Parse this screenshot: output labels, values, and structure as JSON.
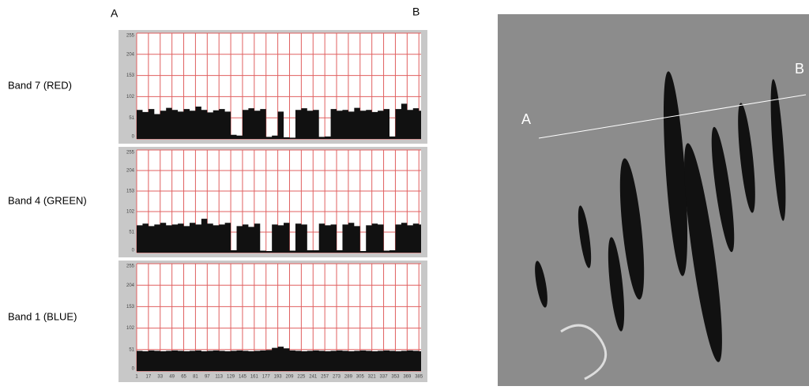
{
  "chart_data": [
    {
      "type": "area",
      "title": "Band 7 (RED)",
      "color": "#111111",
      "grid": true,
      "grid_color": "#e06060",
      "xlim": [
        1,
        388
      ],
      "ylim": [
        0,
        255
      ],
      "xticks": [
        1,
        17,
        33,
        49,
        65,
        81,
        97,
        113,
        129,
        145,
        161,
        177,
        193,
        209,
        225,
        241,
        257,
        273,
        289,
        305,
        321,
        337,
        353,
        369,
        385
      ],
      "yticks": [
        0,
        51,
        102,
        153,
        204,
        255
      ],
      "x": [
        1,
        9,
        17,
        25,
        33,
        41,
        49,
        57,
        65,
        73,
        81,
        89,
        97,
        105,
        113,
        121,
        129,
        137,
        145,
        153,
        161,
        169,
        177,
        185,
        193,
        201,
        209,
        217,
        225,
        233,
        241,
        249,
        257,
        265,
        273,
        281,
        289,
        297,
        305,
        313,
        321,
        329,
        337,
        345,
        353,
        361,
        369,
        377,
        385
      ],
      "values": [
        70,
        65,
        72,
        60,
        68,
        75,
        70,
        66,
        72,
        68,
        78,
        70,
        64,
        69,
        72,
        66,
        10,
        8,
        70,
        74,
        68,
        72,
        5,
        8,
        66,
        4,
        3,
        70,
        74,
        68,
        70,
        5,
        6,
        72,
        68,
        70,
        66,
        75,
        68,
        70,
        65,
        68,
        72,
        6,
        72,
        85,
        70,
        74,
        68
      ]
    },
    {
      "type": "area",
      "title": "Band 4 (GREEN)",
      "color": "#111111",
      "grid": true,
      "grid_color": "#e06060",
      "xlim": [
        1,
        388
      ],
      "ylim": [
        0,
        255
      ],
      "xticks": [
        1,
        17,
        33,
        49,
        65,
        81,
        97,
        113,
        129,
        145,
        161,
        177,
        193,
        209,
        225,
        241,
        257,
        273,
        289,
        305,
        321,
        337,
        353,
        369,
        385
      ],
      "yticks": [
        0,
        51,
        102,
        153,
        204,
        255
      ],
      "x": [
        1,
        9,
        17,
        25,
        33,
        41,
        49,
        57,
        65,
        73,
        81,
        89,
        97,
        105,
        113,
        121,
        129,
        137,
        145,
        153,
        161,
        169,
        177,
        185,
        193,
        201,
        209,
        217,
        225,
        233,
        241,
        249,
        257,
        265,
        273,
        281,
        289,
        297,
        305,
        313,
        321,
        329,
        337,
        345,
        353,
        361,
        369,
        377,
        385
      ],
      "values": [
        68,
        72,
        66,
        70,
        74,
        68,
        70,
        72,
        66,
        74,
        70,
        84,
        72,
        68,
        70,
        74,
        6,
        66,
        70,
        64,
        72,
        5,
        4,
        70,
        68,
        74,
        5,
        72,
        70,
        6,
        6,
        72,
        68,
        70,
        6,
        70,
        74,
        66,
        4,
        68,
        72,
        70,
        5,
        6,
        70,
        74,
        68,
        72,
        70
      ]
    },
    {
      "type": "area",
      "title": "Band 1 (BLUE)",
      "color": "#111111",
      "grid": true,
      "grid_color": "#e06060",
      "xlim": [
        1,
        388
      ],
      "ylim": [
        0,
        255
      ],
      "xticks": [
        1,
        17,
        33,
        49,
        65,
        81,
        97,
        113,
        129,
        145,
        161,
        177,
        193,
        209,
        225,
        241,
        257,
        273,
        289,
        305,
        321,
        337,
        353,
        369,
        385
      ],
      "yticks": [
        0,
        51,
        102,
        153,
        204,
        255
      ],
      "x": [
        1,
        9,
        17,
        25,
        33,
        41,
        49,
        57,
        65,
        73,
        81,
        89,
        97,
        105,
        113,
        121,
        129,
        137,
        145,
        153,
        161,
        169,
        177,
        185,
        193,
        201,
        209,
        217,
        225,
        233,
        241,
        249,
        257,
        265,
        273,
        281,
        289,
        297,
        305,
        313,
        321,
        329,
        337,
        345,
        353,
        361,
        369,
        377,
        385
      ],
      "values": [
        48,
        47,
        49,
        48,
        47,
        48,
        49,
        48,
        47,
        48,
        49,
        47,
        48,
        49,
        48,
        47,
        48,
        49,
        48,
        47,
        48,
        49,
        50,
        55,
        58,
        54,
        49,
        48,
        47,
        48,
        49,
        48,
        47,
        48,
        49,
        48,
        47,
        48,
        49,
        48,
        47,
        48,
        49,
        48,
        47,
        48,
        49,
        48,
        47
      ]
    }
  ],
  "profile": {
    "start_label": "A",
    "end_label": "B"
  },
  "image": {
    "start_label": "A",
    "end_label": "B"
  }
}
